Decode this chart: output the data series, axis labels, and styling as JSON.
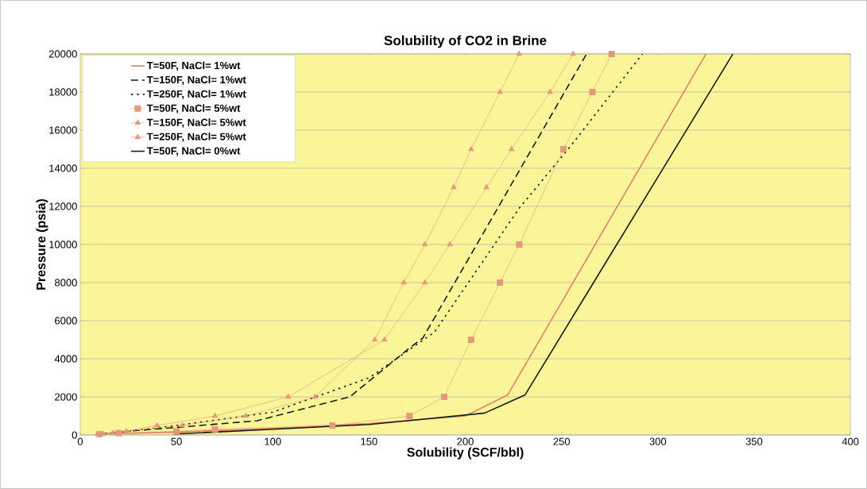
{
  "chart_data": {
    "type": "line",
    "title": "Solubility of CO2 in Brine",
    "xlabel": "Solubility (SCF/bbl)",
    "ylabel": "Pressure (psia)",
    "xlim": [
      0,
      400
    ],
    "xticks": [
      0,
      50,
      100,
      150,
      200,
      250,
      300,
      350,
      400
    ],
    "ylim": [
      0,
      20000
    ],
    "yticks": [
      0,
      2000,
      4000,
      6000,
      8000,
      10000,
      12000,
      14000,
      16000,
      18000,
      20000
    ],
    "grid": "y",
    "legend": "top left",
    "series": [
      {
        "name": "T=50F, NaCl= 1%wt",
        "color": "#e0806a",
        "line_style": "solid",
        "marker": "none",
        "x": [
          10,
          50,
          100,
          150,
          200,
          222,
          325
        ],
        "values": [
          50,
          150,
          350,
          600,
          1000,
          2100,
          20000
        ]
      },
      {
        "name": "T=150F, NaCl= 1%wt",
        "color": "#1a1a1a",
        "line_style": "dashed",
        "marker": "none",
        "x": [
          10,
          25,
          50,
          92,
          140,
          169,
          178,
          263
        ],
        "values": [
          50,
          200,
          400,
          750,
          2000,
          4400,
          5100,
          20000
        ]
      },
      {
        "name": "T=250F, NaCl= 1%wt",
        "color": "#1a1a1a",
        "line_style": "dotted",
        "marker": "none",
        "x": [
          10,
          25,
          50,
          100,
          150,
          184,
          228,
          255,
          292
        ],
        "values": [
          50,
          200,
          500,
          1200,
          3000,
          5400,
          11900,
          15200,
          20000
        ]
      },
      {
        "name": "T=50F, NaCl= 5%wt",
        "color": "#e39a7a",
        "line_style": "solid",
        "marker": "square",
        "x": [
          10,
          20,
          50,
          70,
          131,
          171,
          189,
          203,
          218,
          228,
          251,
          266,
          276
        ],
        "values": [
          50,
          100,
          200,
          300,
          500,
          1000,
          2000,
          5000,
          8000,
          10000,
          15000,
          18000,
          20000
        ]
      },
      {
        "name": "T=150F, NaCl= 5%wt",
        "color": "#e39a7a",
        "line_style": "solid",
        "marker": "triangle",
        "x": [
          12,
          24,
          53,
          86,
          122,
          153,
          168,
          179,
          194,
          203,
          218,
          228
        ],
        "values": [
          50,
          200,
          500,
          1000,
          2000,
          5000,
          8000,
          10000,
          13000,
          15000,
          18000,
          20000
        ]
      },
      {
        "name": "T=250F, NaCl= 5%wt",
        "color": "#e39a7a",
        "line_style": "solid",
        "marker": "triangle",
        "x": [
          9,
          17,
          40,
          70,
          108,
          158,
          179,
          192,
          211,
          224,
          244,
          256
        ],
        "values": [
          50,
          100,
          500,
          1000,
          2000,
          5000,
          8000,
          10000,
          13000,
          15000,
          18000,
          20000
        ]
      },
      {
        "name": "T=50F, NaCl= 0%wt",
        "color": "#1a1a1a",
        "line_style": "solid",
        "marker": "none",
        "x": [
          49,
          100,
          150,
          210,
          231,
          339
        ],
        "values": [
          50,
          300,
          550,
          1150,
          2100,
          20000
        ]
      }
    ]
  }
}
